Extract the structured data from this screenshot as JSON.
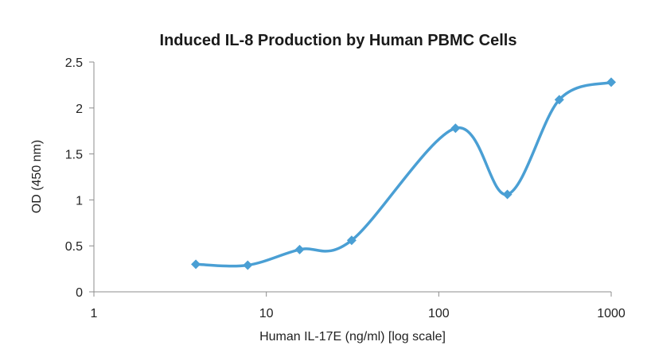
{
  "chart_data": {
    "type": "line",
    "title": "Induced IL-8 Production by Human PBMC Cells",
    "xlabel": "Human IL-17E (ng/ml) [log scale]",
    "ylabel": "OD (450 nm)",
    "x_scale": "log",
    "xlim": [
      1,
      1000
    ],
    "ylim": [
      0,
      2.5
    ],
    "x_ticks": [
      1,
      10,
      100,
      1000
    ],
    "x_tick_labels": [
      "1",
      "10",
      "100",
      "1000"
    ],
    "y_ticks": [
      0,
      0.5,
      1,
      1.5,
      2,
      2.5
    ],
    "y_tick_labels": [
      "0",
      "0.5",
      "1",
      "1.5",
      "2",
      "2.5"
    ],
    "grid": false,
    "legend": "none",
    "smoothed": true,
    "marker": "diamond",
    "series": [
      {
        "color": "#4a9fd4",
        "x": [
          3.9,
          7.8,
          15.6,
          31.25,
          125,
          250,
          500,
          1000
        ],
        "y": [
          0.3,
          0.29,
          0.46,
          0.56,
          1.78,
          1.06,
          2.09,
          2.28
        ]
      }
    ]
  }
}
